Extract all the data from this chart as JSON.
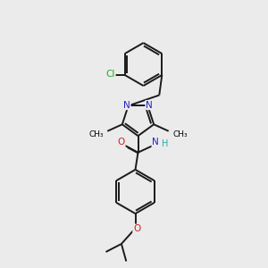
{
  "bg_color": "#ebebeb",
  "atom_colors": {
    "C": "#000000",
    "N": "#2222cc",
    "O": "#cc2222",
    "Cl": "#22aa22",
    "H": "#22aaaa"
  },
  "bond_color": "#1a1a1a",
  "bond_width": 1.4,
  "figsize": [
    3.0,
    3.0
  ],
  "dpi": 100
}
